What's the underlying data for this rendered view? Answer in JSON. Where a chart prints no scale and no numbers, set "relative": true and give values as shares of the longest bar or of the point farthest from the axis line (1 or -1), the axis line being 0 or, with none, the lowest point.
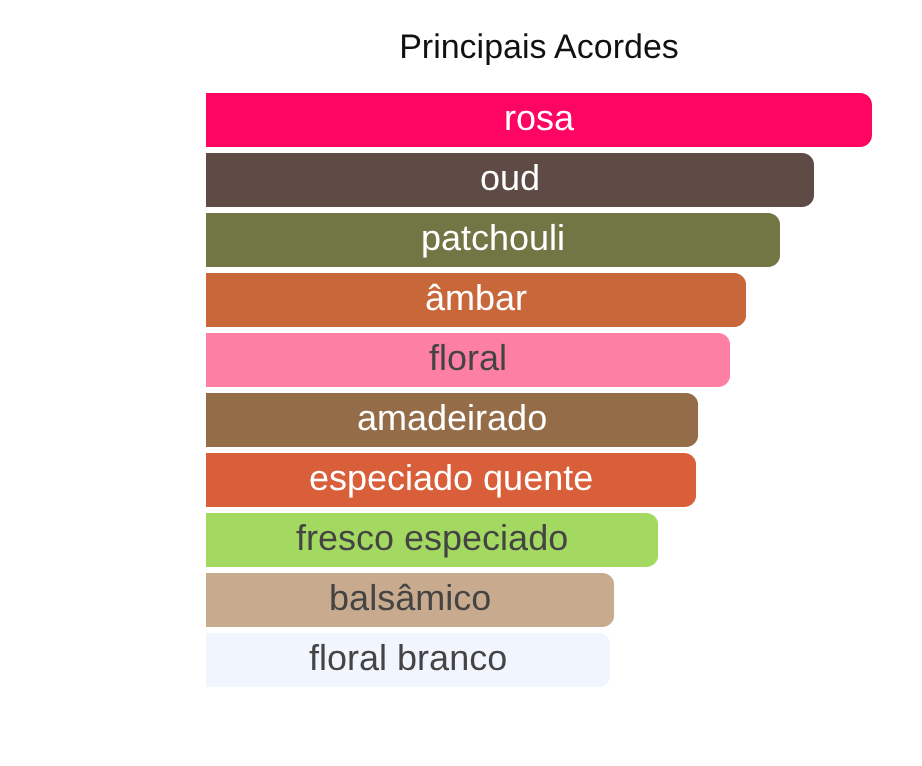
{
  "chart_data": {
    "type": "bar",
    "orientation": "horizontal",
    "relative": true,
    "title": "Principais Acordes",
    "categories": [
      "rosa",
      "oud",
      "patchouli",
      "âmbar",
      "floral",
      "amadeirado",
      "especiado quente",
      "fresco especiado",
      "balsâmico",
      "floral branco"
    ],
    "values": [
      1,
      0.913,
      0.862,
      0.811,
      0.787,
      0.739,
      0.736,
      0.679,
      0.613,
      0.607
    ],
    "colors": [
      "#fe0564",
      "#5f4b45",
      "#727544",
      "#c7673a",
      "#fd7fa3",
      "#946c48",
      "#d95f3b",
      "#a3d861",
      "#c8aa8e",
      "#f1f5fd"
    ]
  }
}
